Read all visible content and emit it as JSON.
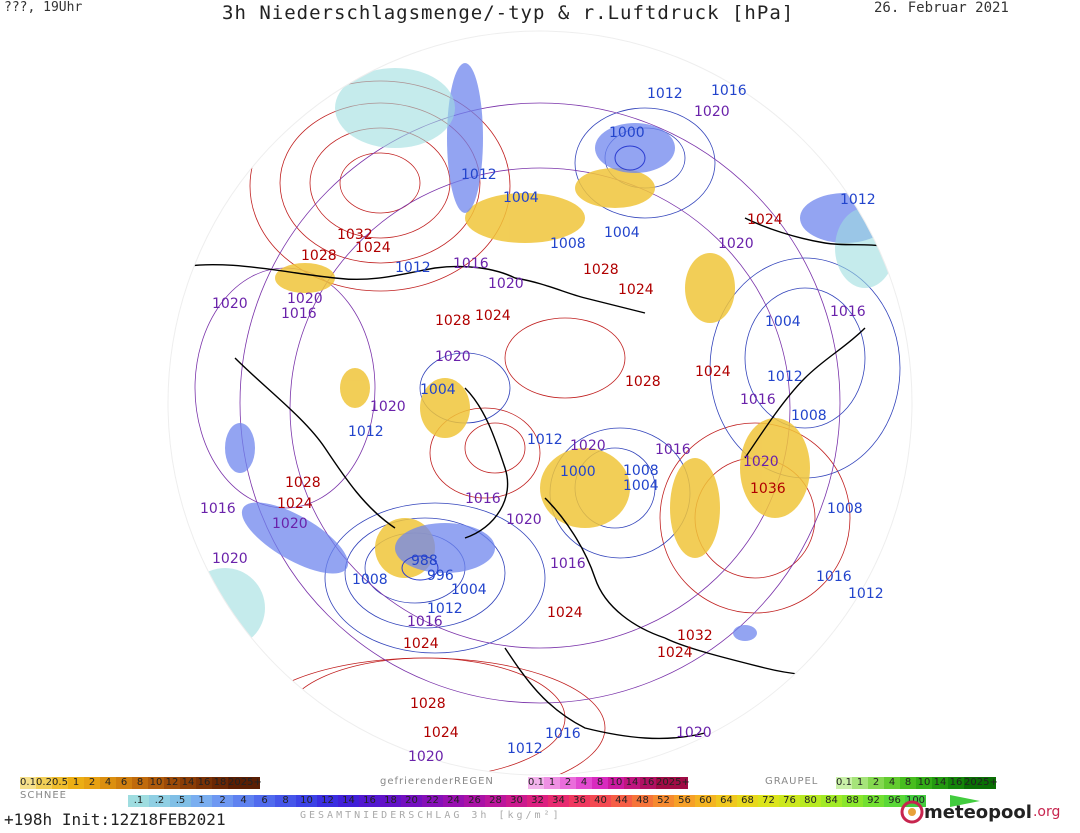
{
  "header": {
    "run": "???, 19Uhr",
    "title": "3h Niederschlagsmenge/-typ & r.Luftdruck [hPa]",
    "valid_date": "26. Februar 2021"
  },
  "footer": {
    "forecast_hour": "+198h",
    "init": "Init:12Z18FEB2021",
    "total_label": "GESAMTNIEDERSCHLAG 3h [kg/m²]",
    "logo_name": "meteopool",
    "logo_tld": ".org"
  },
  "legend": {
    "snow": {
      "title": "SCHNEE",
      "labels": [
        "0.1",
        "0.2",
        "0.5",
        "1",
        "2",
        "4",
        "6",
        "8",
        "10",
        "12",
        "14",
        "16",
        "18",
        "2025+"
      ],
      "colors": [
        "#f6e08a",
        "#f2cf57",
        "#efbd2e",
        "#ecae14",
        "#e6a012",
        "#db8f10",
        "#cf7e0e",
        "#c06b0c",
        "#ae5a0a",
        "#9c4a08",
        "#8a3c06",
        "#7a3105",
        "#6a2704",
        "#5a1e03"
      ]
    },
    "freezing_rain": {
      "title": "gefrierenderREGEN",
      "labels": [
        "0.1",
        "1",
        "2",
        "4",
        "8",
        "10",
        "14",
        "16",
        "2025+"
      ],
      "colors": [
        "#f3b3ec",
        "#ee90e3",
        "#ea6ddb",
        "#e24ad1",
        "#d82bbf",
        "#cc1aa0",
        "#c0157f",
        "#b01061",
        "#a00b45"
      ]
    },
    "graupel": {
      "title": "GRAUPEL",
      "labels": [
        "0.1",
        "1",
        "2",
        "4",
        "8",
        "10",
        "14",
        "16",
        "2025+"
      ],
      "colors": [
        "#c9f0a8",
        "#a6e47a",
        "#84d84f",
        "#63cb30",
        "#47bd1e",
        "#33ad16",
        "#22990f",
        "#148409",
        "#0a6e04"
      ]
    },
    "total": {
      "labels": [
        ".1",
        ".2",
        ".5",
        "1",
        "2",
        "4",
        "6",
        "8",
        "10",
        "12",
        "14",
        "16",
        "18",
        "20",
        "22",
        "24",
        "26",
        "28",
        "30",
        "32",
        "34",
        "36",
        "40",
        "44",
        "48",
        "52",
        "56",
        "60",
        "64",
        "68",
        "72",
        "76",
        "80",
        "84",
        "88",
        "92",
        "96",
        "100"
      ],
      "colors": [
        "#9fdde0",
        "#8fcfe3",
        "#80bfe6",
        "#7aaef0",
        "#6e98f2",
        "#5f82f0",
        "#516bee",
        "#4656ea",
        "#3c42e6",
        "#3a2ee0",
        "#4020d8",
        "#5218d0",
        "#6212c8",
        "#7410c0",
        "#8610b8",
        "#9810b0",
        "#aa12a6",
        "#bc169c",
        "#cc1a8e",
        "#dc2080",
        "#e82a70",
        "#f03860",
        "#f44a52",
        "#f65e46",
        "#f6743a",
        "#f68a30",
        "#f6a028",
        "#f4b422",
        "#f0c81e",
        "#e8d81c",
        "#dce41c",
        "#cce81e",
        "#b8ea22",
        "#a2ea26",
        "#8ae62c",
        "#72e032",
        "#5ad838",
        "#42cc3e"
      ]
    }
  },
  "map": {
    "features": [
      "polar-stereographic-hemisphere",
      "coastlines",
      "isobars",
      "precipitation-areas",
      "low-pressure-centers"
    ],
    "isobar_labels": [
      {
        "text": "1032",
        "color": "#b00000"
      },
      {
        "text": "1024",
        "color": "#b00000"
      },
      {
        "text": "1028",
        "color": "#b00000"
      },
      {
        "text": "1012",
        "color": "#2244cc"
      },
      {
        "text": "1016",
        "color": "#6a22aa"
      },
      {
        "text": "1020",
        "color": "#6a22aa"
      },
      {
        "text": "1004",
        "color": "#2244cc"
      },
      {
        "text": "1008",
        "color": "#2244cc"
      },
      {
        "text": "1000",
        "color": "#2244cc"
      },
      {
        "text": "988",
        "color": "#2244cc"
      },
      {
        "text": "996",
        "color": "#2244cc"
      },
      {
        "text": "1036",
        "color": "#b00000"
      }
    ]
  }
}
